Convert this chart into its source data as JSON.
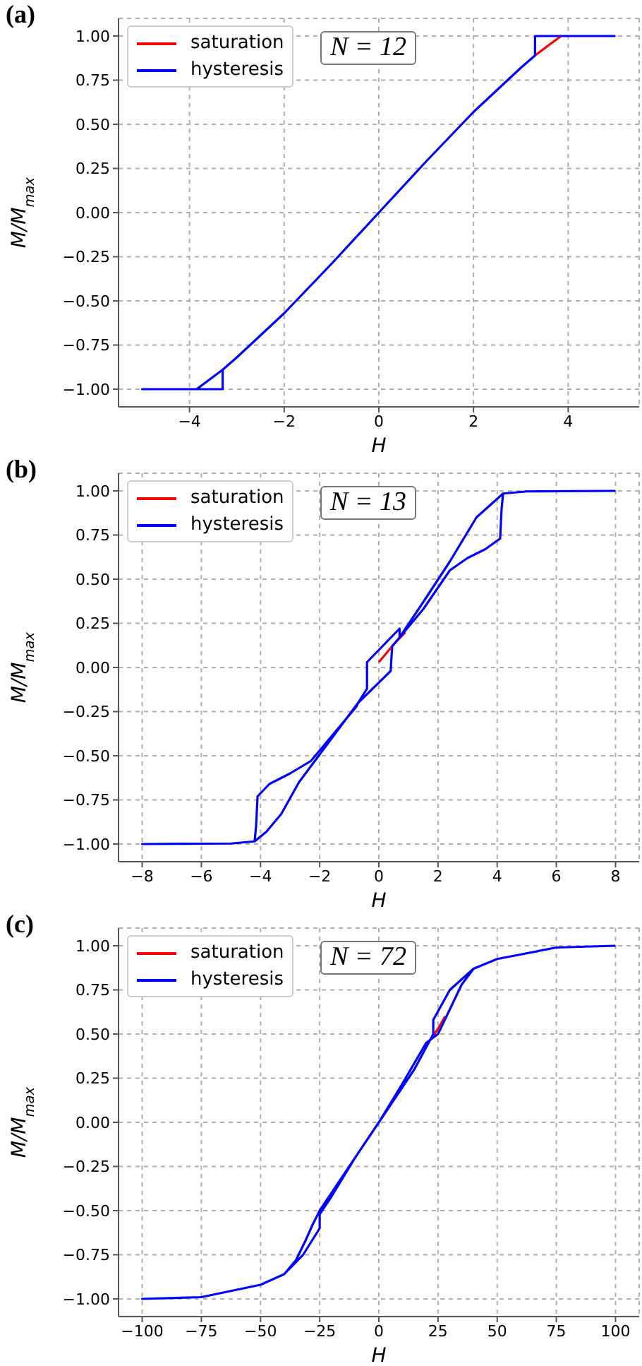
{
  "chart_data": [
    {
      "type": "line",
      "title": "(a)",
      "xlabel": "H",
      "ylabel": "M/M$_{max}$",
      "annotations": [
        "N = 12"
      ],
      "legend": "top left",
      "grid": true,
      "xlim": [
        -5.5,
        5.5
      ],
      "xticks": [
        {
          "value": -4,
          "label": "−4"
        },
        {
          "value": -2,
          "label": "−2"
        },
        0,
        2,
        4
      ],
      "ylim": [
        -1.1,
        1.1
      ],
      "yticks": [
        {
          "value": -1,
          "label": "−1.00"
        },
        {
          "value": -0.75,
          "label": "−0.75"
        },
        {
          "value": -0.5,
          "label": "−0.50"
        },
        {
          "value": -0.25,
          "label": "−0.25"
        },
        {
          "value": 0,
          "label": "0.00"
        },
        {
          "value": 0.25,
          "label": "0.25"
        },
        {
          "value": 0.5,
          "label": "0.50"
        },
        {
          "value": 0.75,
          "label": "0.75"
        },
        {
          "value": 1,
          "label": "1.00"
        }
      ],
      "series": [
        {
          "name": "saturation",
          "color": "#ff0000",
          "x": [
            3.3,
            3.85
          ],
          "values": [
            0.89,
            1
          ]
        },
        {
          "name": "hysteresis",
          "color": "#0000ff",
          "x": [
            5,
            3.3,
            3.3,
            3,
            2,
            1,
            0,
            -1,
            -2,
            -3,
            -3.3,
            -3.3,
            -5,
            -3.85,
            -3.3
          ],
          "values": [
            1,
            1,
            0.89,
            0.82,
            0.57,
            0.29,
            0,
            -0.29,
            -0.57,
            -0.82,
            -0.89,
            -1,
            -1,
            -1,
            -0.89
          ]
        }
      ]
    },
    {
      "type": "line",
      "title": "(b)",
      "xlabel": "H",
      "ylabel": "M/M$_{max}$",
      "annotations": [
        "N = 13"
      ],
      "legend": "top left",
      "grid": true,
      "xlim": [
        -8.8,
        8.8
      ],
      "xticks": [
        {
          "value": -8,
          "label": "−8"
        },
        {
          "value": -6,
          "label": "−6"
        },
        {
          "value": -4,
          "label": "−4"
        },
        {
          "value": -2,
          "label": "−2"
        },
        0,
        2,
        4,
        6,
        8
      ],
      "ylim": [
        -1.1,
        1.1
      ],
      "yticks": [
        {
          "value": -1,
          "label": "−1.00"
        },
        {
          "value": -0.75,
          "label": "−0.75"
        },
        {
          "value": -0.5,
          "label": "−0.50"
        },
        {
          "value": -0.25,
          "label": "−0.25"
        },
        {
          "value": 0,
          "label": "0.00"
        },
        {
          "value": 0.25,
          "label": "0.25"
        },
        {
          "value": 0.5,
          "label": "0.50"
        },
        {
          "value": 0.75,
          "label": "0.75"
        },
        {
          "value": 1,
          "label": "1.00"
        }
      ],
      "series": [
        {
          "name": "saturation",
          "color": "#ff0000",
          "x": [
            0,
            0.5,
            0.9
          ],
          "values": [
            0.03,
            0.13,
            0.2
          ]
        },
        {
          "name": "hysteresis",
          "color": "#0000ff",
          "x": [
            8,
            5,
            4.2,
            4.15,
            4.1,
            3.6,
            3,
            2.4,
            1.5,
            0.7,
            0.45,
            0.4,
            -0.7,
            -0.75,
            -1.5,
            -2.3,
            -3,
            -3.7,
            -4.1,
            -4.15,
            -4.2,
            -5,
            -8,
            -5,
            -4.2,
            -3.8,
            -3.3,
            -2.7,
            -1.5,
            -0.7,
            -0.4,
            -0.4,
            0.7,
            0.7,
            1.5,
            2.4,
            3.3,
            4.1,
            4.2
          ],
          "values": [
            1,
            0.997,
            0.985,
            0.9,
            0.73,
            0.67,
            0.62,
            0.55,
            0.33,
            0.17,
            0.12,
            -0.02,
            -0.2,
            -0.22,
            -0.37,
            -0.53,
            -0.6,
            -0.66,
            -0.73,
            -0.9,
            -0.985,
            -0.997,
            -1,
            -0.997,
            -0.985,
            -0.93,
            -0.83,
            -0.65,
            -0.38,
            -0.2,
            -0.12,
            0.03,
            0.22,
            0.17,
            0.37,
            0.6,
            0.85,
            0.97,
            0.985
          ]
        }
      ]
    },
    {
      "type": "line",
      "title": "(c)",
      "xlabel": "H",
      "ylabel": "M/M$_{max}$",
      "annotations": [
        "N = 72"
      ],
      "legend": "top left",
      "grid": true,
      "xlim": [
        -110,
        110
      ],
      "xticks": [
        {
          "value": -100,
          "label": "−100"
        },
        {
          "value": -75,
          "label": "−75"
        },
        {
          "value": -50,
          "label": "−50"
        },
        {
          "value": -25,
          "label": "−25"
        },
        0,
        25,
        50,
        75,
        100
      ],
      "ylim": [
        -1.1,
        1.1
      ],
      "yticks": [
        {
          "value": -1,
          "label": "−1.00"
        },
        {
          "value": -0.75,
          "label": "−0.75"
        },
        {
          "value": -0.5,
          "label": "−0.50"
        },
        {
          "value": -0.25,
          "label": "−0.25"
        },
        {
          "value": 0,
          "label": "0.00"
        },
        {
          "value": 0.25,
          "label": "0.25"
        },
        {
          "value": 0.5,
          "label": "0.50"
        },
        {
          "value": 0.75,
          "label": "0.75"
        },
        {
          "value": 1,
          "label": "1.00"
        }
      ],
      "series": [
        {
          "name": "saturation",
          "color": "#ff0000",
          "x": [
            22,
            25,
            28
          ],
          "values": [
            0.47,
            0.53,
            0.6
          ]
        },
        {
          "name": "hysteresis",
          "color": "#0000ff",
          "x": [
            100,
            75,
            50,
            40,
            30,
            23,
            23,
            15,
            10,
            0,
            -10,
            -15,
            -20,
            -25,
            -28,
            -31,
            -35,
            -40,
            -50,
            -75,
            -100,
            -75,
            -50,
            -40,
            -32,
            -25,
            -25,
            -20,
            -10,
            0,
            10,
            20,
            25,
            30,
            35,
            40
          ],
          "values": [
            1,
            0.99,
            0.925,
            0.87,
            0.75,
            0.58,
            0.5,
            0.3,
            0.2,
            0,
            -0.2,
            -0.3,
            -0.4,
            -0.5,
            -0.58,
            -0.67,
            -0.78,
            -0.86,
            -0.92,
            -0.99,
            -1,
            -0.99,
            -0.92,
            -0.86,
            -0.75,
            -0.6,
            -0.52,
            -0.42,
            -0.2,
            0,
            0.22,
            0.45,
            0.5,
            0.64,
            0.78,
            0.87
          ]
        }
      ]
    }
  ]
}
